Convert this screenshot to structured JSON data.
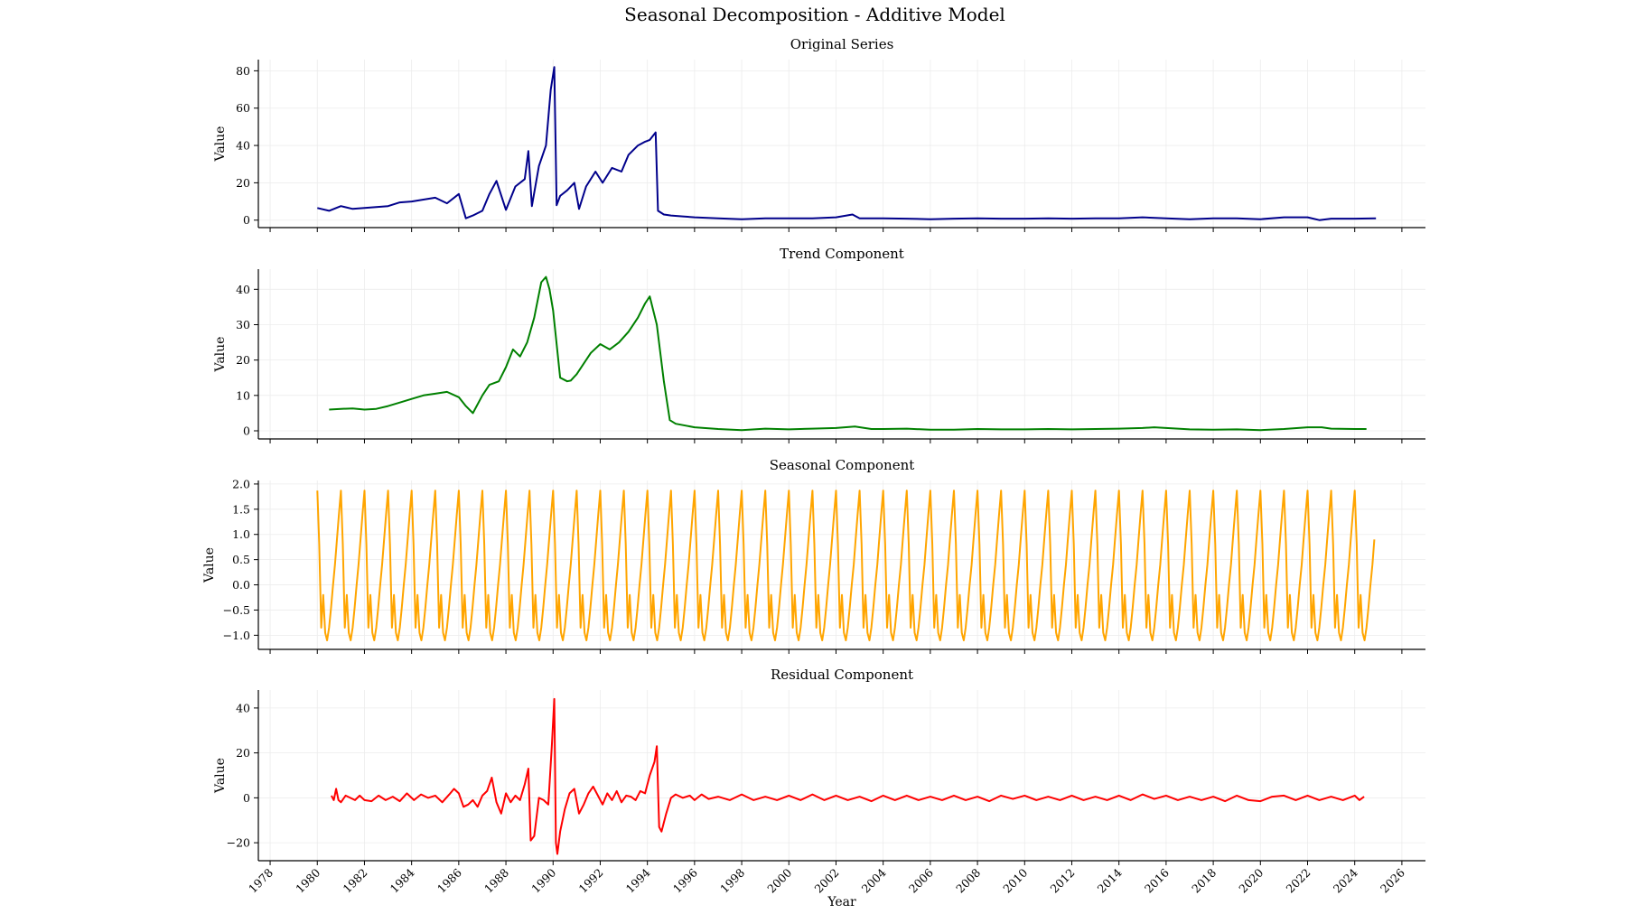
{
  "figure": {
    "title": "Seasonal Decomposition - Additive Model",
    "xlabel": "Year"
  },
  "chart_data": [
    {
      "type": "line",
      "title": "Original Series",
      "ylabel": "Value",
      "color": "#00008b",
      "ylim": [
        -4,
        86
      ],
      "yticks": [
        0,
        20,
        40,
        60,
        80
      ],
      "x": [
        1980.0,
        1980.5,
        1981.0,
        1981.5,
        1982.0,
        1982.5,
        1983.0,
        1983.5,
        1984.0,
        1984.5,
        1985.0,
        1985.5,
        1986.0,
        1986.3,
        1986.6,
        1987.0,
        1987.3,
        1987.6,
        1988.0,
        1988.4,
        1988.8,
        1988.95,
        1989.1,
        1989.4,
        1989.7,
        1989.9,
        1990.05,
        1990.15,
        1990.3,
        1990.6,
        1990.9,
        1991.1,
        1991.4,
        1991.8,
        1992.1,
        1992.5,
        1992.9,
        1993.2,
        1993.6,
        1993.9,
        1994.1,
        1994.35,
        1994.45,
        1994.7,
        1995.0,
        1995.5,
        1996.0,
        1997.0,
        1998.0,
        1999.0,
        2000.0,
        2001.0,
        2002.0,
        2002.7,
        2003.0,
        2004.0,
        2005.0,
        2006.0,
        2007.0,
        2008.0,
        2009.0,
        2010.0,
        2011.0,
        2012.0,
        2013.0,
        2014.0,
        2015.0,
        2016.0,
        2017.0,
        2018.0,
        2019.0,
        2020.0,
        2021.0,
        2022.0,
        2022.5,
        2023.0,
        2024.0,
        2024.9
      ],
      "y": [
        6.5,
        5.0,
        7.5,
        6.0,
        6.5,
        7.0,
        7.5,
        9.5,
        10.0,
        11.0,
        12.0,
        9.0,
        14.0,
        1.0,
        2.5,
        5.0,
        14.0,
        21.0,
        5.5,
        18.0,
        22.0,
        37.0,
        7.5,
        29.0,
        40.0,
        70.0,
        82.0,
        8.0,
        13.0,
        16.0,
        20.0,
        6.0,
        18.0,
        26.0,
        20.0,
        28.0,
        26.0,
        35.0,
        40.0,
        42.0,
        43.0,
        47.0,
        5.0,
        3.0,
        2.5,
        2.0,
        1.5,
        1.0,
        0.5,
        1.0,
        1.0,
        1.0,
        1.5,
        3.0,
        1.0,
        1.0,
        0.8,
        0.5,
        0.8,
        1.0,
        0.8,
        0.8,
        1.0,
        0.8,
        1.0,
        1.0,
        1.5,
        1.0,
        0.5,
        1.0,
        1.0,
        0.5,
        1.5,
        1.5,
        0.0,
        0.8,
        0.8,
        1.0
      ]
    },
    {
      "type": "line",
      "title": "Trend Component",
      "ylabel": "Value",
      "color": "#008000",
      "ylim": [
        -2.3,
        45.7
      ],
      "yticks": [
        0,
        10,
        20,
        30,
        40
      ],
      "x": [
        1980.5,
        1981.0,
        1981.5,
        1982.0,
        1982.5,
        1983.0,
        1983.5,
        1984.0,
        1984.5,
        1985.0,
        1985.5,
        1986.0,
        1986.3,
        1986.6,
        1987.0,
        1987.3,
        1987.7,
        1988.0,
        1988.3,
        1988.6,
        1988.9,
        1989.2,
        1989.5,
        1989.7,
        1989.85,
        1990.0,
        1990.3,
        1990.6,
        1990.75,
        1991.0,
        1991.3,
        1991.6,
        1992.0,
        1992.4,
        1992.8,
        1993.2,
        1993.6,
        1993.9,
        1994.1,
        1994.4,
        1994.7,
        1994.95,
        1995.2,
        1996.0,
        1997.0,
        1998.0,
        1999.0,
        2000.0,
        2001.0,
        2002.0,
        2002.8,
        2003.5,
        2004.0,
        2005.0,
        2006.0,
        2007.0,
        2008.0,
        2009.0,
        2010.0,
        2011.0,
        2012.0,
        2013.0,
        2014.0,
        2015.0,
        2015.5,
        2016.0,
        2017.0,
        2018.0,
        2019.0,
        2020.0,
        2021.0,
        2022.0,
        2022.6,
        2023.0,
        2024.0,
        2024.5
      ],
      "y": [
        6.0,
        6.2,
        6.3,
        6.0,
        6.2,
        7.0,
        8.0,
        9.0,
        10.0,
        10.5,
        11.0,
        9.5,
        7.0,
        5.0,
        10.0,
        13.0,
        14.0,
        18.0,
        23.0,
        21.0,
        25.0,
        32.0,
        42.0,
        43.5,
        40.0,
        34.0,
        15.0,
        14.0,
        14.2,
        16.0,
        19.0,
        22.0,
        24.5,
        23.0,
        25.0,
        28.0,
        32.0,
        36.0,
        38.0,
        30.0,
        14.0,
        3.0,
        2.0,
        1.0,
        0.5,
        0.2,
        0.6,
        0.4,
        0.6,
        0.8,
        1.2,
        0.5,
        0.5,
        0.6,
        0.3,
        0.3,
        0.5,
        0.4,
        0.4,
        0.5,
        0.4,
        0.5,
        0.6,
        0.8,
        1.0,
        0.8,
        0.4,
        0.3,
        0.4,
        0.2,
        0.5,
        1.0,
        1.0,
        0.6,
        0.5,
        0.5
      ]
    },
    {
      "type": "line",
      "title": "Seasonal Component",
      "ylabel": "Value",
      "color": "#ffa500",
      "ylim": [
        -1.28,
        2.07
      ],
      "yticks": [
        -1.0,
        -0.5,
        0.0,
        0.5,
        1.0,
        1.5,
        2.0
      ],
      "ytick_labels": [
        "−1.0",
        "−0.5",
        "0.0",
        "0.5",
        "1.0",
        "1.5",
        "2.0"
      ],
      "period_start": 1980.0,
      "period_years": 1.0,
      "end_x": 2024.9,
      "pattern": [
        1.87,
        0.8,
        -0.85,
        -0.2,
        -0.95,
        -1.1,
        -0.85,
        -0.45,
        0.0,
        0.4,
        0.9,
        1.4
      ]
    },
    {
      "type": "line",
      "title": "Residual Component",
      "ylabel": "Value",
      "color": "#ff0000",
      "ylim": [
        -28,
        48
      ],
      "yticks": [
        -20,
        0,
        20,
        40
      ],
      "ytick_labels": [
        "−20",
        "0",
        "20",
        "40"
      ],
      "x": [
        1980.6,
        1980.7,
        1980.8,
        1980.9,
        1981.0,
        1981.2,
        1981.4,
        1981.6,
        1981.8,
        1982.0,
        1982.3,
        1982.6,
        1982.9,
        1983.2,
        1983.5,
        1983.8,
        1984.1,
        1984.4,
        1984.7,
        1985.0,
        1985.3,
        1985.6,
        1985.8,
        1986.0,
        1986.2,
        1986.4,
        1986.6,
        1986.8,
        1987.0,
        1987.2,
        1987.4,
        1987.6,
        1987.8,
        1988.0,
        1988.2,
        1988.4,
        1988.6,
        1988.8,
        1988.95,
        1989.05,
        1989.2,
        1989.4,
        1989.6,
        1989.8,
        1989.95,
        1990.05,
        1990.12,
        1990.18,
        1990.3,
        1990.5,
        1990.7,
        1990.9,
        1991.1,
        1991.3,
        1991.5,
        1991.7,
        1991.9,
        1992.1,
        1992.3,
        1992.5,
        1992.7,
        1992.9,
        1993.1,
        1993.3,
        1993.5,
        1993.7,
        1993.9,
        1994.1,
        1994.3,
        1994.4,
        1994.5,
        1994.6,
        1994.8,
        1995.0,
        1995.2,
        1995.5,
        1995.8,
        1996.0,
        1996.3,
        1996.6,
        1997.0,
        1997.5,
        1998.0,
        1998.5,
        1999.0,
        1999.5,
        2000.0,
        2000.5,
        2001.0,
        2001.5,
        2002.0,
        2002.5,
        2003.0,
        2003.5,
        2004.0,
        2004.5,
        2005.0,
        2005.5,
        2006.0,
        2006.5,
        2007.0,
        2007.5,
        2008.0,
        2008.5,
        2009.0,
        2009.5,
        2010.0,
        2010.5,
        2011.0,
        2011.5,
        2012.0,
        2012.5,
        2013.0,
        2013.5,
        2014.0,
        2014.5,
        2015.0,
        2015.5,
        2016.0,
        2016.5,
        2017.0,
        2017.5,
        2018.0,
        2018.5,
        2019.0,
        2019.5,
        2020.0,
        2020.5,
        2021.0,
        2021.5,
        2022.0,
        2022.5,
        2023.0,
        2023.5,
        2024.0,
        2024.2,
        2024.4
      ],
      "y": [
        1.0,
        -1.0,
        4.0,
        -1.0,
        -2.0,
        1.0,
        0.0,
        -1.0,
        1.0,
        -1.0,
        -1.5,
        1.0,
        -1.0,
        0.5,
        -1.5,
        2.0,
        -1.0,
        1.5,
        0.0,
        1.0,
        -2.0,
        1.5,
        4.0,
        2.0,
        -4.0,
        -3.0,
        -1.0,
        -4.0,
        1.0,
        3.0,
        9.0,
        -2.0,
        -7.0,
        2.0,
        -2.0,
        1.0,
        -1.0,
        6.0,
        13.0,
        -19.0,
        -17.0,
        0.0,
        -1.0,
        -3.0,
        24.0,
        44.0,
        -20.0,
        -25.0,
        -15.0,
        -5.0,
        2.0,
        4.0,
        -7.0,
        -3.0,
        2.0,
        5.0,
        1.0,
        -3.0,
        2.0,
        -1.0,
        3.0,
        -2.0,
        1.0,
        0.5,
        -1.0,
        3.0,
        2.0,
        10.0,
        16.0,
        23.0,
        -13.0,
        -15.0,
        -7.0,
        0.0,
        1.5,
        0.0,
        1.0,
        -1.0,
        1.5,
        -0.5,
        0.5,
        -1.0,
        1.5,
        -1.0,
        0.5,
        -1.0,
        1.0,
        -1.0,
        1.5,
        -1.0,
        1.0,
        -1.0,
        0.5,
        -1.5,
        1.0,
        -1.0,
        1.0,
        -1.0,
        0.5,
        -1.0,
        1.0,
        -1.0,
        0.5,
        -1.5,
        1.0,
        -0.5,
        1.0,
        -1.0,
        0.5,
        -1.0,
        1.0,
        -1.0,
        0.5,
        -1.0,
        1.0,
        -1.0,
        1.5,
        -0.5,
        1.0,
        -1.0,
        0.5,
        -1.0,
        0.5,
        -1.5,
        1.0,
        -1.0,
        -1.5,
        0.5,
        1.0,
        -1.0,
        1.0,
        -1.0,
        0.5,
        -1.0,
        1.0,
        -1.0,
        0.5
      ]
    }
  ],
  "x_axis": {
    "xlim": [
      1977.5,
      2027.0
    ],
    "ticks": [
      1978,
      1980,
      1982,
      1984,
      1986,
      1988,
      1990,
      1992,
      1994,
      1996,
      1998,
      2000,
      2002,
      2004,
      2006,
      2008,
      2010,
      2012,
      2014,
      2016,
      2018,
      2020,
      2022,
      2024,
      2026
    ]
  }
}
